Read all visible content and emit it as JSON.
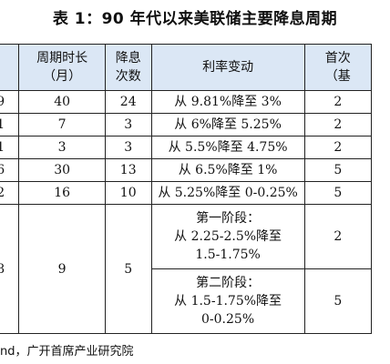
{
  "title": "表 1：90 年代以来美联储主要降息周期",
  "headers": {
    "col0": "",
    "duration": [
      "周期时长",
      "（月）"
    ],
    "cuts": [
      "降息",
      "次数"
    ],
    "rate_change": "利率变动",
    "first_cut": [
      "首次",
      "（基"
    ]
  },
  "rows": [
    {
      "c0": "9",
      "duration": "40",
      "cuts": "24",
      "rate": "从 9.81%降至 3%",
      "first": "2"
    },
    {
      "c0": "1",
      "duration": "7",
      "cuts": "3",
      "rate": "从 6%降至 5.25%",
      "first": "2"
    },
    {
      "c0": "1",
      "duration": "3",
      "cuts": "3",
      "rate": "从 5.5%降至 4.75%",
      "first": "2"
    },
    {
      "c0": "6",
      "duration": "30",
      "cuts": "13",
      "rate": "从 6.5%降至 1%",
      "first": "5"
    },
    {
      "c0": "2",
      "duration": "16",
      "cuts": "10",
      "rate": "从 5.25%降至 0-0.25%",
      "first": "5"
    }
  ],
  "last_row": {
    "c0": "8",
    "duration": "9",
    "cuts": "5",
    "stage1": [
      "第一阶段：",
      "从 2.25-2.5%降至",
      "1.5-1.75%"
    ],
    "stage1_first": "2",
    "stage2": [
      "第二阶段：",
      "从 1.5-1.75%降至",
      "0-0.25%"
    ],
    "stage2_first": "5"
  },
  "source": "nd，广开首席产业研究院"
}
